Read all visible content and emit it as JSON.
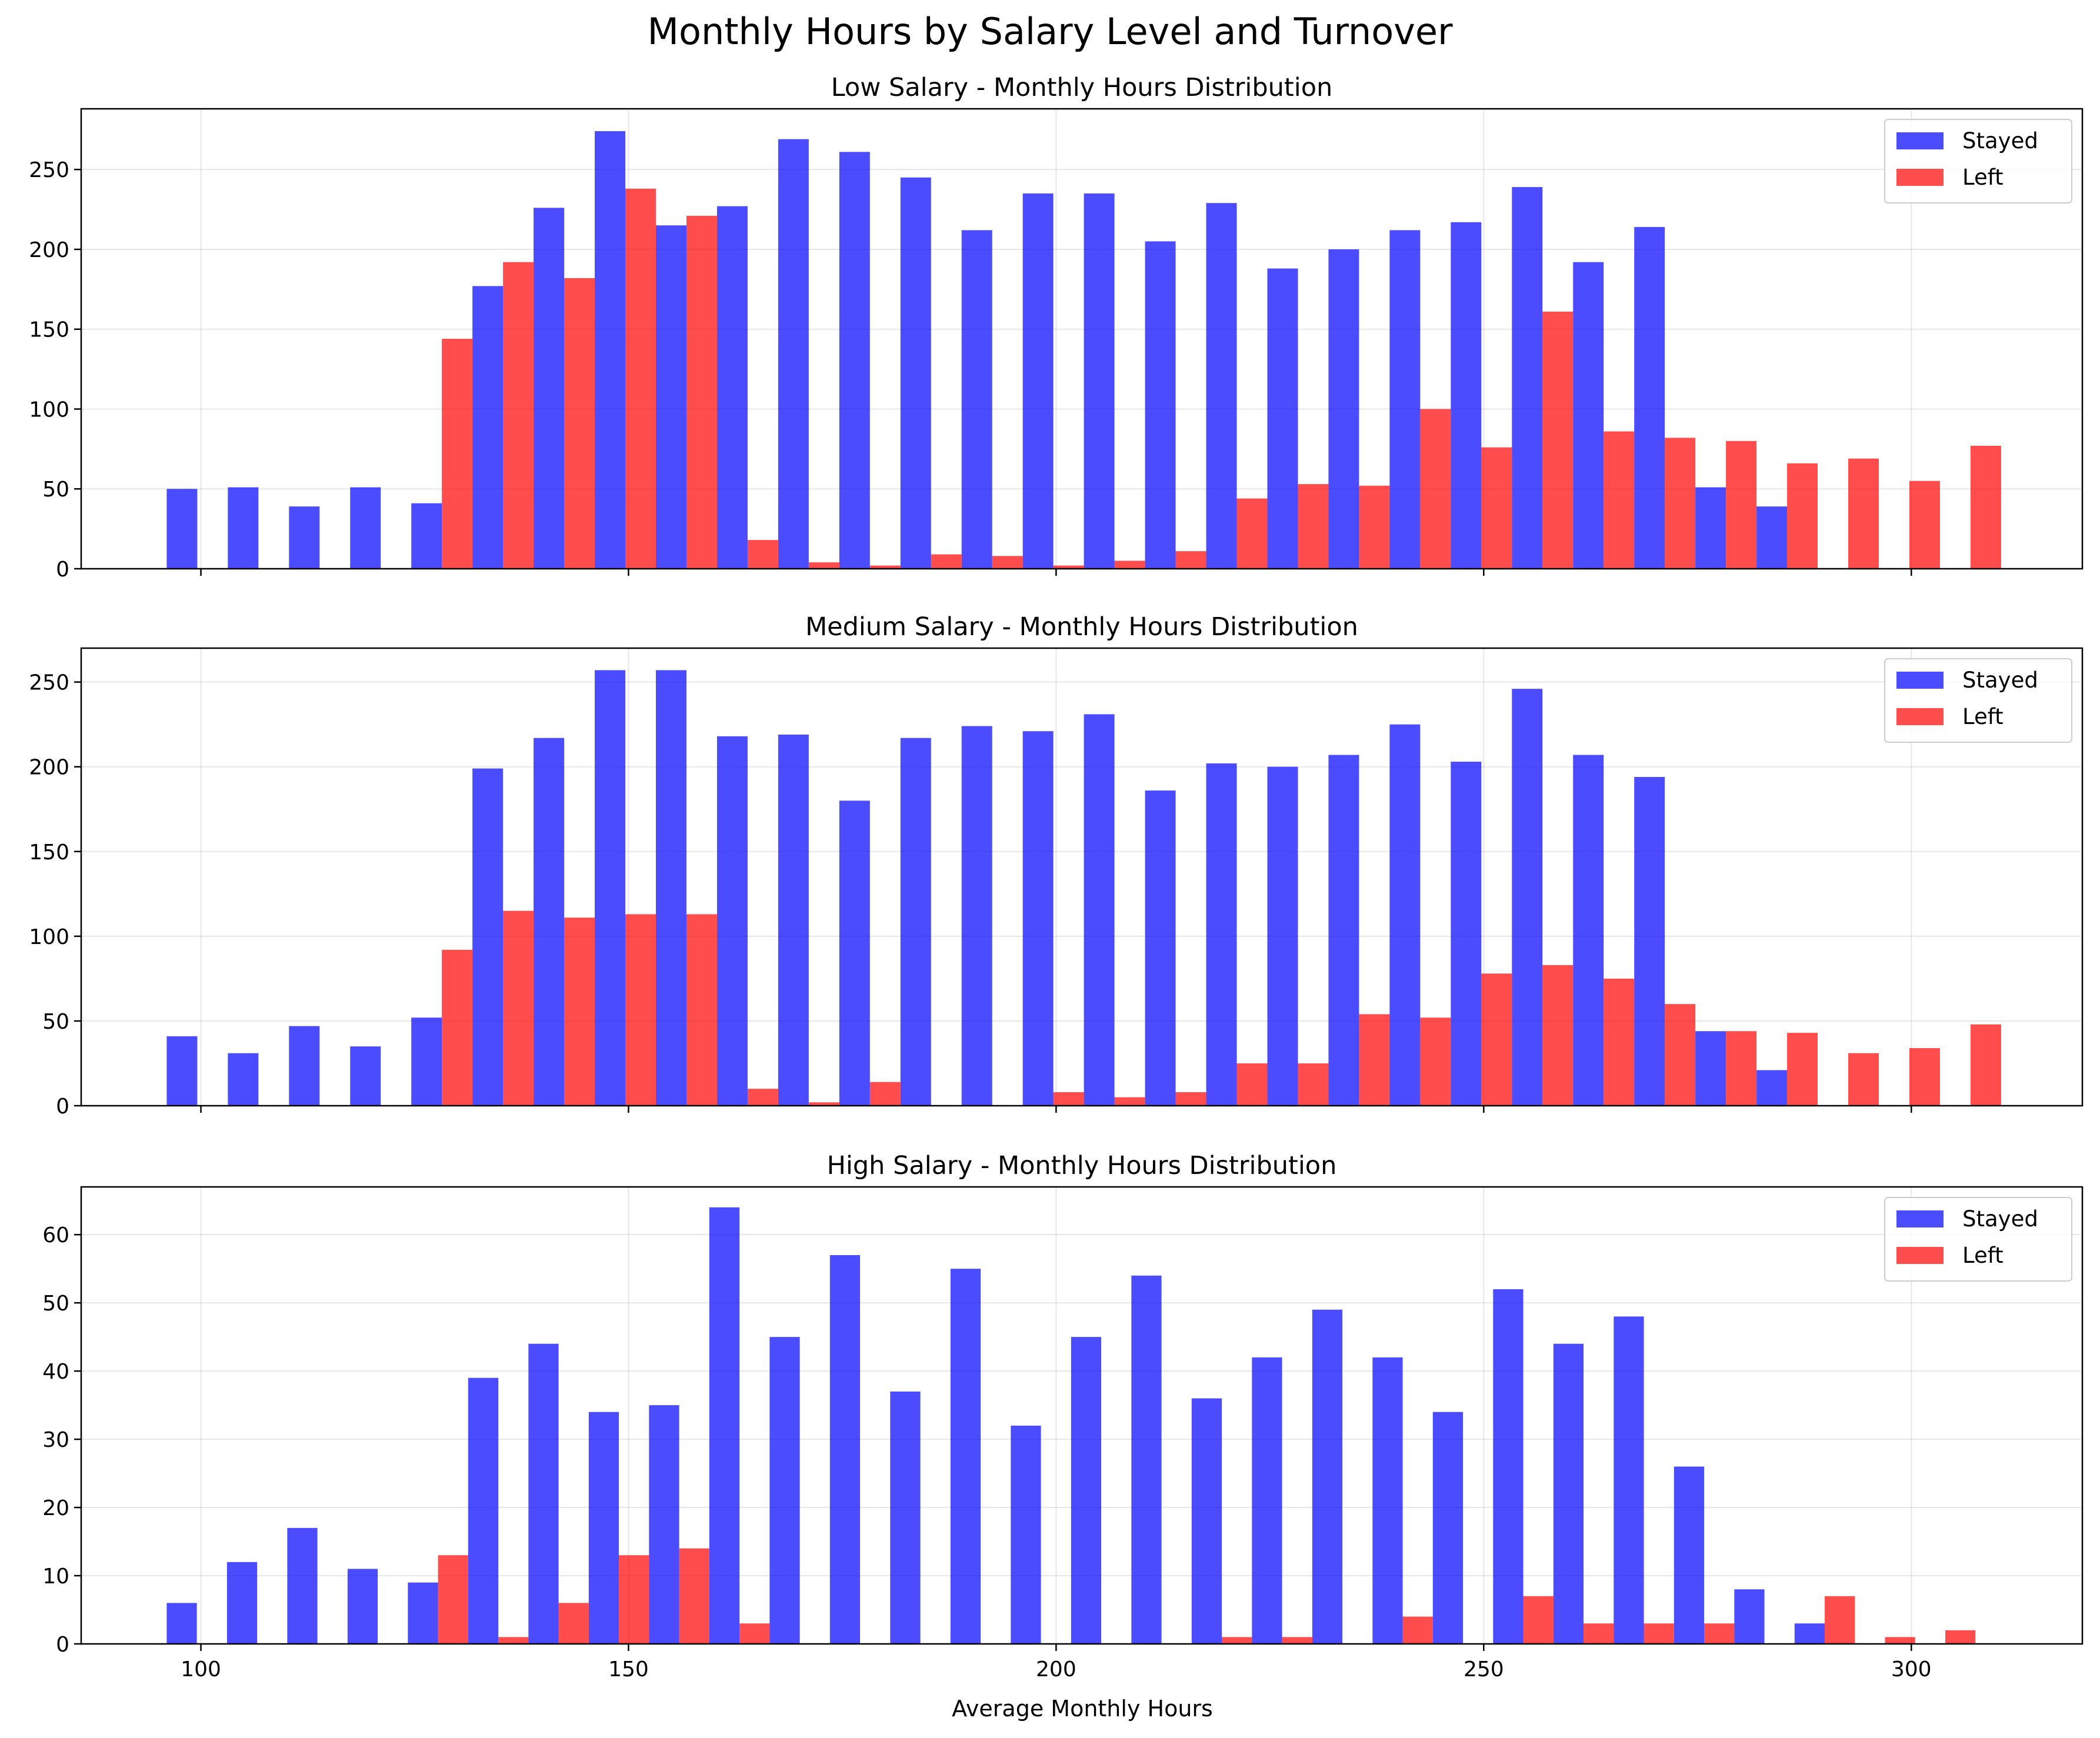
{
  "figure": {
    "suptitle": "Monthly Hours by Salary Level and Turnover",
    "xlabel": "Average Monthly Hours",
    "colors": {
      "stayed": "#0000ff",
      "left": "#ff0000"
    },
    "bar_alpha": 0.7
  },
  "chart_data": [
    {
      "type": "bar",
      "title": "Low Salary - Monthly Hours Distribution",
      "xlabel": "",
      "ylabel": "",
      "xlim": [
        86,
        320
      ],
      "ylim": [
        0,
        288
      ],
      "xticks": [
        100,
        150,
        200,
        250,
        300
      ],
      "yticks": [
        0,
        50,
        100,
        150,
        200,
        250
      ],
      "show_xtick_labels": false,
      "grid": true,
      "legend": "top-right",
      "bin_start": 96,
      "bin_width": 7.15,
      "series": [
        {
          "name": "Stayed",
          "color": "#0000ff",
          "values": [
            50,
            51,
            39,
            51,
            41,
            177,
            226,
            274,
            215,
            227,
            269,
            261,
            245,
            212,
            235,
            235,
            205,
            229,
            188,
            200,
            212,
            217,
            239,
            192,
            214,
            51,
            39,
            0,
            0,
            0
          ]
        },
        {
          "name": "Left",
          "color": "#ff0000",
          "values": [
            0,
            0,
            0,
            0,
            144,
            192,
            182,
            238,
            221,
            18,
            4,
            2,
            9,
            8,
            2,
            5,
            11,
            44,
            53,
            52,
            100,
            76,
            161,
            86,
            82,
            80,
            66,
            69,
            55,
            77
          ]
        }
      ]
    },
    {
      "type": "bar",
      "title": "Medium Salary - Monthly Hours Distribution",
      "xlabel": "",
      "ylabel": "",
      "xlim": [
        86,
        320
      ],
      "ylim": [
        0,
        270
      ],
      "xticks": [
        100,
        150,
        200,
        250,
        300
      ],
      "yticks": [
        0,
        50,
        100,
        150,
        200,
        250
      ],
      "show_xtick_labels": false,
      "grid": true,
      "legend": "top-right",
      "bin_start": 96,
      "bin_width": 7.15,
      "series": [
        {
          "name": "Stayed",
          "color": "#0000ff",
          "values": [
            41,
            31,
            47,
            35,
            52,
            199,
            217,
            257,
            257,
            218,
            219,
            180,
            217,
            224,
            221,
            231,
            186,
            202,
            200,
            207,
            225,
            203,
            246,
            207,
            194,
            44,
            21,
            0,
            0,
            0
          ]
        },
        {
          "name": "Left",
          "color": "#ff0000",
          "values": [
            0,
            0,
            0,
            0,
            92,
            115,
            111,
            113,
            113,
            10,
            2,
            14,
            0,
            0,
            8,
            5,
            8,
            25,
            25,
            54,
            52,
            78,
            83,
            75,
            60,
            44,
            43,
            31,
            34,
            48
          ]
        }
      ]
    },
    {
      "type": "bar",
      "title": "High Salary - Monthly Hours Distribution",
      "xlabel": "Average Monthly Hours",
      "ylabel": "",
      "xlim": [
        86,
        320
      ],
      "ylim": [
        0,
        67
      ],
      "xticks": [
        100,
        150,
        200,
        250,
        300
      ],
      "yticks": [
        0,
        10,
        20,
        30,
        40,
        50,
        60
      ],
      "show_xtick_labels": true,
      "grid": true,
      "legend": "top-right",
      "bin_start": 96,
      "bin_width": 7.05,
      "series": [
        {
          "name": "Stayed",
          "color": "#0000ff",
          "values": [
            6,
            12,
            17,
            11,
            9,
            39,
            44,
            34,
            35,
            64,
            45,
            57,
            37,
            55,
            32,
            45,
            54,
            36,
            42,
            49,
            42,
            34,
            52,
            44,
            48,
            26,
            8,
            3,
            0,
            0
          ]
        },
        {
          "name": "Left",
          "color": "#ff0000",
          "values": [
            0,
            0,
            0,
            0,
            13,
            1,
            6,
            13,
            14,
            3,
            0,
            0,
            0,
            0,
            0,
            0,
            0,
            1,
            1,
            0,
            4,
            0,
            7,
            3,
            3,
            3,
            0,
            7,
            1,
            2
          ]
        }
      ]
    }
  ]
}
